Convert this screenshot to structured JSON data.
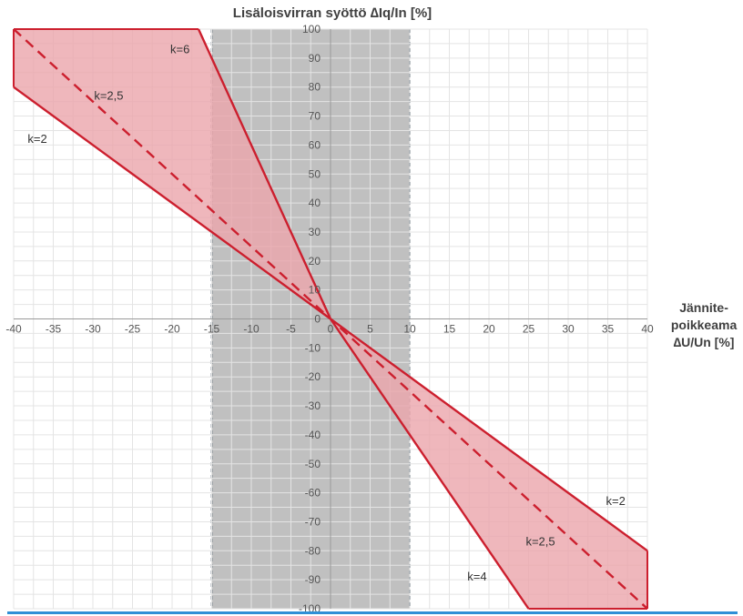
{
  "chart_data": {
    "type": "area",
    "title": "Lisäloisvirran syöttö ∆Iq/In [%]",
    "xlabel": [
      "Jännite-",
      "poikkeama",
      "∆U/Un  [%]"
    ],
    "ylabel": "",
    "xlim": [
      -40,
      40
    ],
    "ylim": [
      -100,
      100
    ],
    "xticks": [
      -40,
      -35,
      -30,
      -25,
      -20,
      -15,
      -10,
      -5,
      0,
      5,
      10,
      15,
      20,
      25,
      30,
      35,
      40
    ],
    "yticks": [
      -100,
      -90,
      -80,
      -70,
      -60,
      -50,
      -40,
      -30,
      -20,
      -10,
      0,
      10,
      20,
      30,
      40,
      50,
      60,
      70,
      80,
      90,
      100
    ],
    "grid": true,
    "deadband": {
      "x": [
        -15,
        10
      ],
      "color": "#c0c0c0",
      "border_color": "#4a5a6a"
    },
    "fill_color": "#eba5ab",
    "line_color": "#cc1f2e",
    "series": [
      {
        "name": "k=2",
        "style": "solid",
        "x": [
          -40,
          0,
          40
        ],
        "y": [
          80,
          0,
          -80
        ]
      },
      {
        "name": "k=6",
        "style": "solid",
        "x": [
          -16.67,
          0
        ],
        "y": [
          100,
          0
        ]
      },
      {
        "name": "k=4",
        "style": "solid",
        "x": [
          0,
          25
        ],
        "y": [
          0,
          -100
        ]
      },
      {
        "name": "k=2,5",
        "style": "dashed",
        "x": [
          -40,
          40
        ],
        "y": [
          100,
          -100
        ]
      }
    ],
    "annotations": [
      {
        "text": "k=6",
        "x": -19,
        "y": 93
      },
      {
        "text": "k=2,5",
        "x": -28,
        "y": 77
      },
      {
        "text": "k=2",
        "x": -37,
        "y": 62
      },
      {
        "text": "k=2",
        "x": 36,
        "y": -63
      },
      {
        "text": "k=2,5",
        "x": 26.5,
        "y": -77
      },
      {
        "text": "k=4",
        "x": 18.5,
        "y": -89
      }
    ]
  }
}
